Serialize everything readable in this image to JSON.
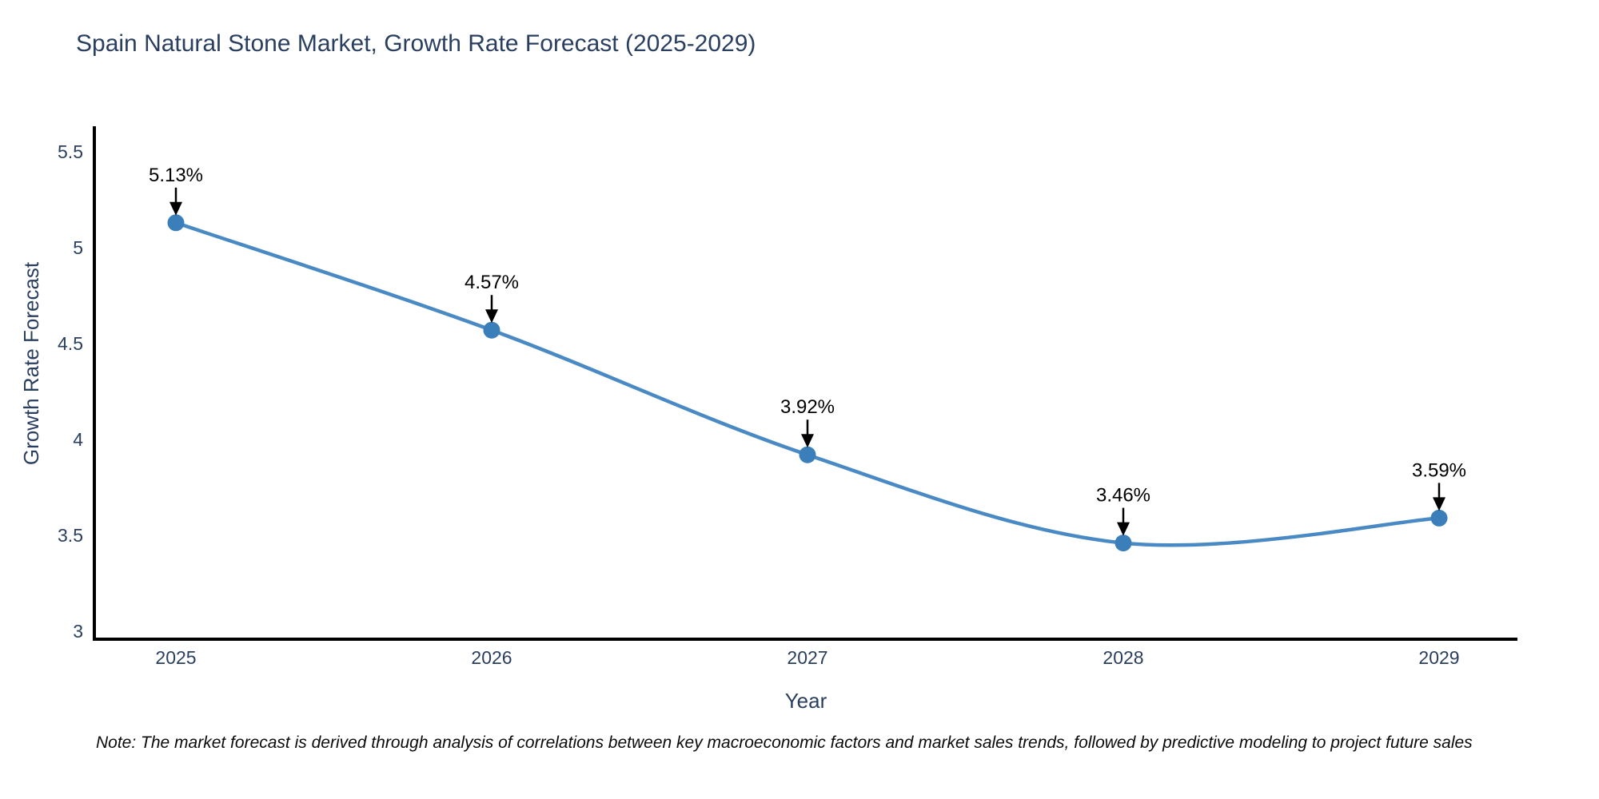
{
  "title": "Spain Natural Stone Market, Growth Rate Forecast (2025-2029)",
  "note": "Note: The market forecast is derived through analysis of correlations between key macroeconomic factors and market sales trends, followed by predictive modeling to project future sales",
  "chart_data": {
    "type": "line",
    "title": "Spain Natural Stone Market, Growth Rate Forecast (2025-2029)",
    "xlabel": "Year",
    "ylabel": "Growth Rate Forecast",
    "categories": [
      "2025",
      "2026",
      "2027",
      "2028",
      "2029"
    ],
    "series": [
      {
        "name": "Growth Rate Forecast",
        "values": [
          5.13,
          4.57,
          3.92,
          3.46,
          3.59
        ]
      }
    ],
    "point_labels": [
      "5.13%",
      "4.57%",
      "3.92%",
      "3.46%",
      "3.59%"
    ],
    "ylim": [
      3,
      5.5
    ],
    "yticks": [
      3,
      3.5,
      4,
      4.5,
      5,
      5.5
    ],
    "line_shape": "spline",
    "grid": false,
    "legend": "none",
    "colors": {
      "line": "#4a8ac4",
      "marker": "#3b7fba",
      "axis_line": "#000000",
      "tick_text": "#2a3f5f",
      "annotation": "#000000"
    }
  }
}
